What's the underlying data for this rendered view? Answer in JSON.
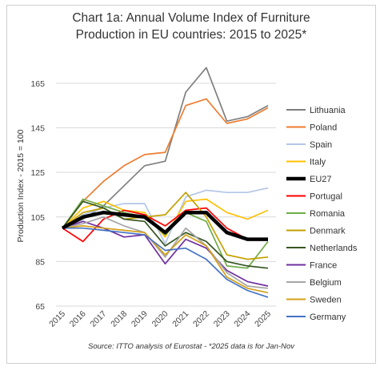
{
  "chart_data": {
    "type": "line",
    "title_line1": "Chart 1a: Annual Volume Index of Furniture",
    "title_line2": "Production in EU countries: 2015 to 2025*",
    "ylabel": "Production Index - 2015 = 100",
    "xlabel": "",
    "source": "Source: ITTO analysis of Eurostat - *2025 data is for Jan-Nov",
    "ylim": [
      65,
      170
    ],
    "yticks": [
      65,
      85,
      105,
      125,
      145,
      165
    ],
    "grid": true,
    "legend_position": "right",
    "x": [
      "2015",
      "2016",
      "2017",
      "2018",
      "2019",
      "2020",
      "2021",
      "2022",
      "2023",
      "2024",
      "2025"
    ],
    "series": [
      {
        "name": "Lithuania",
        "color": "#7f7f7f",
        "values": [
          100,
          104,
          110,
          119,
          128,
          130,
          161,
          172,
          148,
          150,
          155
        ]
      },
      {
        "name": "Poland",
        "color": "#ed7d31",
        "values": [
          100,
          112,
          121,
          128,
          133,
          134,
          155,
          158,
          147,
          149,
          154
        ]
      },
      {
        "name": "Spain",
        "color": "#b4c6e7",
        "values": [
          100,
          106,
          109,
          111,
          111,
          93,
          114,
          117,
          116,
          116,
          118
        ]
      },
      {
        "name": "Italy",
        "color": "#ffc000",
        "values": [
          100,
          109,
          112,
          108,
          107,
          96,
          112,
          113,
          107,
          104,
          108
        ]
      },
      {
        "name": "EU27",
        "color": "#000000",
        "values": [
          100,
          105,
          107,
          106,
          105,
          98,
          107,
          107,
          98,
          95,
          95
        ]
      },
      {
        "name": "Portugal",
        "color": "#ff0000",
        "values": [
          100,
          94,
          104,
          108,
          106,
          101,
          108,
          109,
          100,
          95,
          95
        ]
      },
      {
        "name": "Romania",
        "color": "#70ad47",
        "values": [
          100,
          113,
          110,
          107,
          105,
          97,
          107,
          103,
          83,
          82,
          94
        ]
      },
      {
        "name": "Denmark",
        "color": "#c5a000",
        "values": [
          100,
          107,
          109,
          104,
          105,
          106,
          116,
          105,
          88,
          86,
          87
        ]
      },
      {
        "name": "Netherlands",
        "color": "#375623",
        "values": [
          100,
          112,
          109,
          104,
          103,
          92,
          98,
          94,
          85,
          83,
          82
        ]
      },
      {
        "name": "France",
        "color": "#7030a0",
        "values": [
          100,
          103,
          100,
          96,
          97,
          84,
          95,
          91,
          81,
          76,
          74
        ]
      },
      {
        "name": "Belgium",
        "color": "#a5a5a5",
        "values": [
          100,
          102,
          105,
          101,
          98,
          87,
          100,
          92,
          80,
          74,
          73
        ]
      },
      {
        "name": "Sweden",
        "color": "#d4a017",
        "values": [
          100,
          101,
          100,
          99,
          98,
          88,
          97,
          92,
          78,
          73,
          71
        ]
      },
      {
        "name": "Germany",
        "color": "#4472c4",
        "values": [
          100,
          100,
          99,
          98,
          97,
          90,
          91,
          86,
          77,
          72,
          69
        ]
      }
    ],
    "highlight_series": "EU27"
  }
}
